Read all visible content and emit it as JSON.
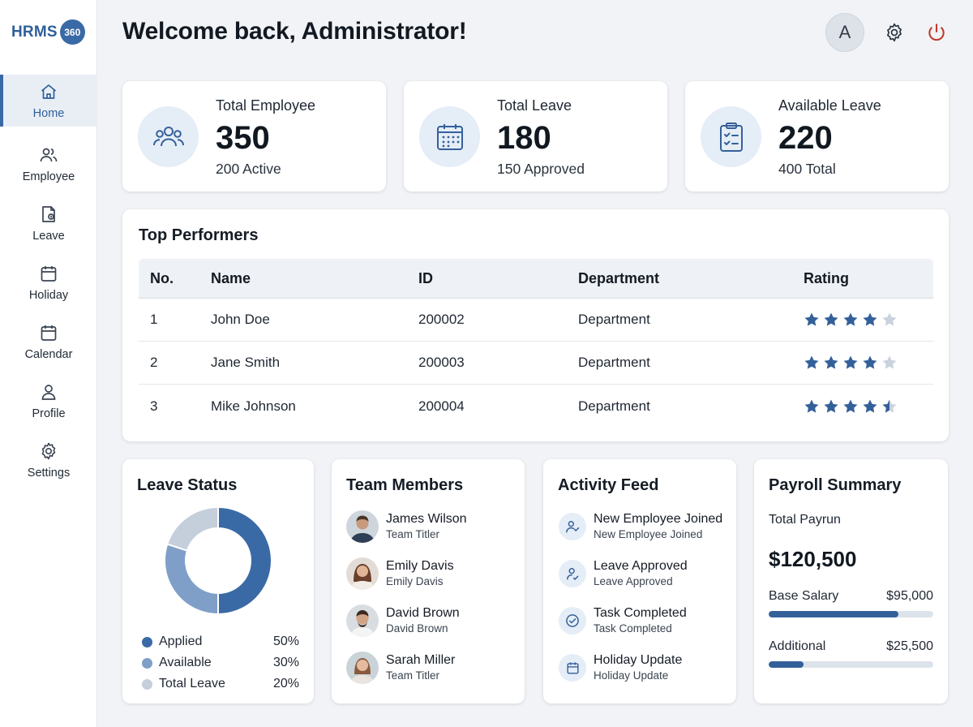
{
  "app": {
    "logo_text": "HRMS",
    "logo_badge": "360"
  },
  "colors": {
    "accent": "#34609a",
    "accent_light": "#7f9fc8",
    "muted": "#c5cfdb",
    "power": "#c0392b"
  },
  "sidebar": {
    "items": [
      {
        "label": "Home",
        "icon": "home-icon",
        "active": true
      },
      {
        "label": "Employee",
        "icon": "users-icon"
      },
      {
        "label": "Leave",
        "icon": "leave-icon"
      },
      {
        "label": "Holiday",
        "icon": "calendar-icon"
      },
      {
        "label": "Calendar",
        "icon": "calendar-icon"
      },
      {
        "label": "Profile",
        "icon": "user-icon"
      },
      {
        "label": "Settings",
        "icon": "gear-icon"
      }
    ]
  },
  "header": {
    "title": "Welcome back, Administrator!",
    "avatar_initial": "A"
  },
  "stats": [
    {
      "label": "Total Employee",
      "value": "350",
      "sub": "200 Active",
      "icon": "users-icon"
    },
    {
      "label": "Total Leave",
      "value": "180",
      "sub": "150 Approved",
      "icon": "calendar-icon"
    },
    {
      "label": "Available Leave",
      "value": "220",
      "sub": "400 Total",
      "icon": "clipboard-check-icon"
    }
  ],
  "top_performers": {
    "title": "Top Performers",
    "columns": [
      "No.",
      "Name",
      "ID",
      "Department",
      "Rating"
    ],
    "rows": [
      {
        "no": "1",
        "name": "John Doe",
        "id": "200002",
        "department": "Department",
        "rating": 4
      },
      {
        "no": "2",
        "name": "Jane Smith",
        "id": "200003",
        "department": "Department",
        "rating": 4
      },
      {
        "no": "3",
        "name": "Mike Johnson",
        "id": "200004",
        "department": "Department",
        "rating": 4.5
      }
    ],
    "rating_max": 5
  },
  "leave_status": {
    "title": "Leave Status",
    "legend": [
      {
        "label": "Applied",
        "pct": "50%",
        "color": "#3a6aa6"
      },
      {
        "label": "Available",
        "pct": "30%",
        "color": "#7f9fc8"
      },
      {
        "label": "Total Leave",
        "pct": "20%",
        "color": "#c5cfdb"
      }
    ]
  },
  "chart_data": {
    "type": "pie",
    "categories": [
      "Applied",
      "Available",
      "Total Leave"
    ],
    "values": [
      50,
      30,
      20
    ],
    "title": "Leave Status"
  },
  "team_members": {
    "title": "Team Members",
    "items": [
      {
        "name": "James Wilson",
        "role": "Team Titler"
      },
      {
        "name": "Emily Davis",
        "role": "Emily Davis"
      },
      {
        "name": "David Brown",
        "role": "David Brown"
      },
      {
        "name": "Sarah Miller",
        "role": "Team Titler"
      }
    ]
  },
  "activity_feed": {
    "title": "Activity Feed",
    "items": [
      {
        "title": "New Employee Joined",
        "sub": "New Employee Joined",
        "icon": "user-plus-icon"
      },
      {
        "title": "Leave Approved",
        "sub": "Leave Approved",
        "icon": "user-check-icon"
      },
      {
        "title": "Task Completed",
        "sub": "Task Completed",
        "icon": "check-circle-icon"
      },
      {
        "title": "Holiday Update",
        "sub": "Holiday Update",
        "icon": "calendar-icon"
      }
    ]
  },
  "payroll": {
    "title": "Payroll Summary",
    "total_label": "Total Payrun",
    "total_value": "$120,500",
    "lines": [
      {
        "label": "Base Salary",
        "amount": "$95,000",
        "fraction": 0.79
      },
      {
        "label": "Additional",
        "amount": "$25,500",
        "fraction": 0.21
      }
    ]
  }
}
